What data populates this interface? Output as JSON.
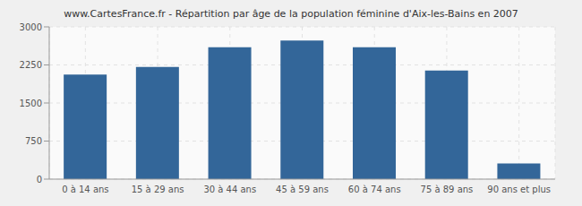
{
  "chart_data": {
    "type": "bar",
    "title": "www.CartesFrance.fr - Répartition par âge de la population féminine d'Aix-les-Bains en 2007",
    "categories": [
      "0 à 14 ans",
      "15 à 29 ans",
      "30 à 44 ans",
      "45 à 59 ans",
      "60 à 74 ans",
      "75 à 89 ans",
      "90 ans et plus"
    ],
    "values": [
      2060,
      2210,
      2600,
      2730,
      2600,
      2140,
      310
    ],
    "color": "#336699",
    "ylim": [
      0,
      3000
    ],
    "yticks": [
      0,
      750,
      1500,
      2250,
      3000
    ],
    "grid": true
  }
}
